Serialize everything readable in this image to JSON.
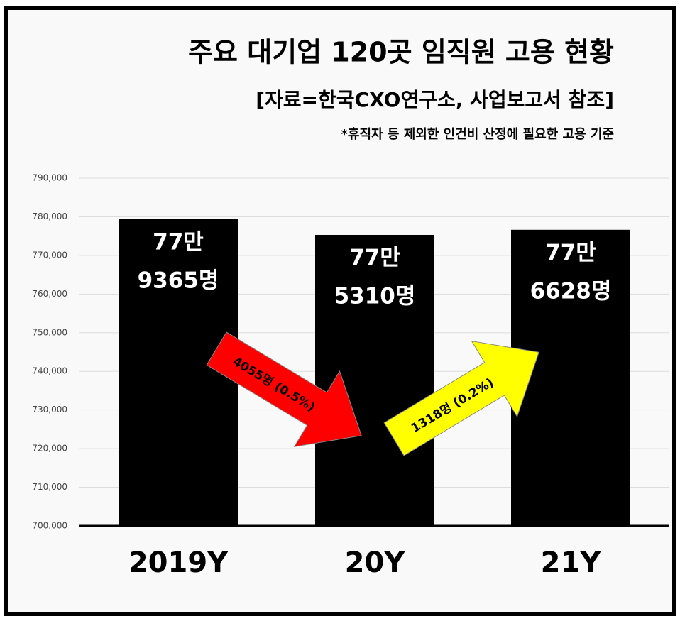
{
  "chart_data": {
    "type": "bar",
    "title": "주요 대기업 120곳 임직원 고용 현황",
    "subtitle": "[자료=한국CXO연구소, 사업보고서 참조]",
    "note": "*휴직자 등 제외한 인건비 산정에 필요한 고용 기준",
    "categories": [
      "2019Y",
      "20Y",
      "21Y"
    ],
    "values": [
      779365,
      775310,
      776628
    ],
    "value_labels": [
      [
        "77만",
        "9365명"
      ],
      [
        "77만",
        "5310명"
      ],
      [
        "77만",
        "6628명"
      ]
    ],
    "color": "#000000",
    "ylim": [
      700000,
      790000
    ],
    "yticks": [
      {
        "value": 700000,
        "label": "700,000"
      },
      {
        "value": 710000,
        "label": "710,000"
      },
      {
        "value": 720000,
        "label": "720,000"
      },
      {
        "value": 730000,
        "label": "730,000"
      },
      {
        "value": 740000,
        "label": "740,000"
      },
      {
        "value": 750000,
        "label": "750,000"
      },
      {
        "value": 760000,
        "label": "760,000"
      },
      {
        "value": 770000,
        "label": "770,000"
      },
      {
        "value": 780000,
        "label": "780,000"
      },
      {
        "value": 790000,
        "label": "790,000"
      }
    ],
    "grid": true,
    "annotations": [
      {
        "text": "4055명 (0.5%)",
        "color": "#ff0000"
      },
      {
        "text": "1318명 (0.2%)",
        "color": "#ffff00"
      }
    ]
  }
}
